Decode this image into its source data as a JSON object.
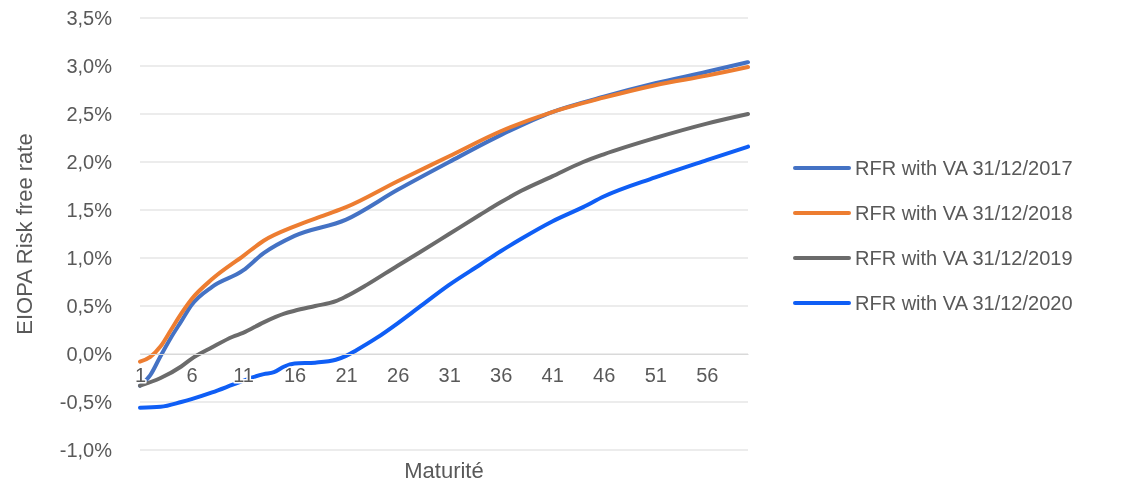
{
  "chart_data": {
    "type": "line",
    "xlabel": "Maturité",
    "ylabel": "EIOPA Risk free rate",
    "xlim": [
      1,
      60
    ],
    "xticks": [
      1,
      6,
      11,
      16,
      21,
      26,
      31,
      36,
      41,
      46,
      51,
      56
    ],
    "ylim": [
      -1,
      3.5
    ],
    "yticks": [
      {
        "value": -1,
        "label": "-1,0%"
      },
      {
        "value": -0.5,
        "label": "-0,5%"
      },
      {
        "value": 0,
        "label": "0,0%"
      },
      {
        "value": 0.5,
        "label": "0,5%"
      },
      {
        "value": 1,
        "label": "1,0%"
      },
      {
        "value": 1.5,
        "label": "1,5%"
      },
      {
        "value": 2,
        "label": "2,0%"
      },
      {
        "value": 2.5,
        "label": "2,5%"
      },
      {
        "value": 3,
        "label": "3,0%"
      },
      {
        "value": 3.5,
        "label": "3,5%"
      }
    ],
    "grid": "y",
    "legend": "right",
    "marker": "none",
    "line_style": "solid",
    "series": [
      {
        "name": "RFR with VA 31/12/2017",
        "color": "#4472c4",
        "x": [
          1,
          2,
          3,
          4,
          5,
          6,
          8,
          11,
          13,
          16,
          21,
          26,
          31,
          36,
          41,
          46,
          51,
          56,
          60
        ],
        "values": [
          -0.33,
          -0.22,
          -0.02,
          0.17,
          0.34,
          0.51,
          0.7,
          0.87,
          1.05,
          1.23,
          1.4,
          1.71,
          2.0,
          2.28,
          2.52,
          2.68,
          2.82,
          2.94,
          3.04
        ]
      },
      {
        "name": "RFR with VA 31/12/2018",
        "color": "#ed7d31",
        "x": [
          1,
          2,
          3,
          4,
          5,
          6,
          8,
          11,
          13,
          16,
          19,
          21,
          26,
          31,
          36,
          41,
          46,
          51,
          56,
          60
        ],
        "values": [
          -0.08,
          -0.03,
          0.08,
          0.25,
          0.42,
          0.57,
          0.78,
          1.02,
          1.18,
          1.33,
          1.45,
          1.53,
          1.8,
          2.06,
          2.32,
          2.52,
          2.67,
          2.8,
          2.9,
          2.99
        ]
      },
      {
        "name": "RFR with VA 31/12/2019",
        "color": "#6b6b6b",
        "x": [
          1,
          3,
          5,
          6,
          8,
          10,
          11,
          13,
          15,
          16,
          18,
          20,
          21,
          23,
          26,
          28,
          31,
          34,
          36,
          38,
          41,
          44,
          46,
          51,
          56,
          60
        ],
        "values": [
          -0.33,
          -0.25,
          -0.13,
          -0.05,
          0.07,
          0.18,
          0.22,
          0.33,
          0.42,
          0.45,
          0.5,
          0.55,
          0.6,
          0.72,
          0.92,
          1.05,
          1.25,
          1.45,
          1.58,
          1.7,
          1.85,
          2.0,
          2.08,
          2.25,
          2.4,
          2.5
        ]
      },
      {
        "name": "RFR with VA 31/12/2020",
        "color": "#0f5ef5",
        "x": [
          1,
          3,
          5,
          6,
          8,
          10,
          12,
          13,
          14,
          15,
          16,
          18,
          20,
          21,
          22,
          24,
          26,
          28,
          31,
          34,
          36,
          38,
          41,
          44,
          46,
          51,
          56,
          60
        ],
        "values": [
          -0.56,
          -0.55,
          -0.5,
          -0.47,
          -0.4,
          -0.32,
          -0.24,
          -0.21,
          -0.19,
          -0.13,
          -0.1,
          -0.09,
          -0.06,
          -0.02,
          0.04,
          0.17,
          0.32,
          0.48,
          0.72,
          0.93,
          1.07,
          1.2,
          1.38,
          1.53,
          1.64,
          1.84,
          2.02,
          2.16
        ]
      }
    ]
  }
}
